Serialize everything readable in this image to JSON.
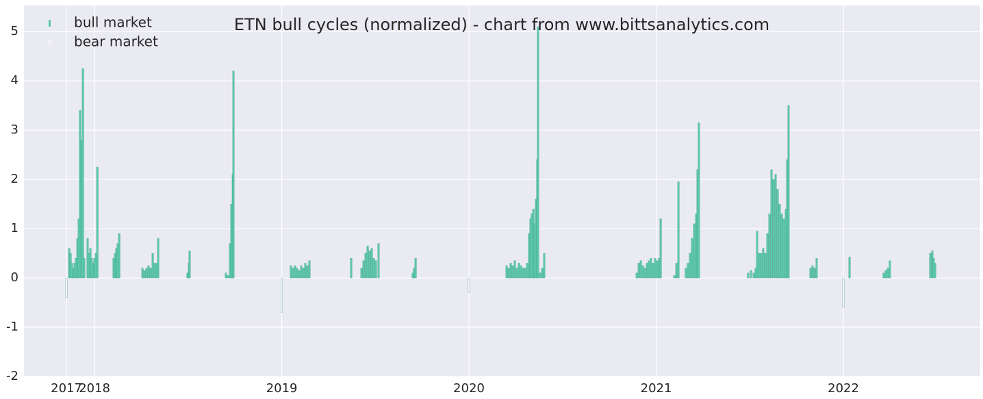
{
  "chart_data": {
    "type": "bar",
    "title": "ETN bull cycles (normalized)  - chart from www.bittsanalytics.com",
    "xlim": [
      2017.623,
      2022.731
    ],
    "ylim": [
      -2,
      5.53
    ],
    "xticks": [
      {
        "value": 2017.85,
        "label": "2017"
      },
      2018,
      2019,
      2020,
      2021,
      2022
    ],
    "yticks": [
      -2,
      -1,
      0,
      1,
      2,
      3,
      4,
      5
    ],
    "grid": true,
    "legend": "upper left",
    "series": [
      {
        "name": "bull market",
        "color": "#5cc7aa",
        "x": [
          2017.865,
          2017.872,
          2017.879,
          2017.887,
          2017.894,
          2017.901,
          2017.909,
          2017.916,
          2017.923,
          2017.931,
          2017.938,
          2017.945,
          2017.963,
          2017.971,
          2017.978,
          2017.985,
          2017.993,
          2018.0,
          2018.007,
          2018.015,
          2018.102,
          2018.11,
          2018.117,
          2018.124,
          2018.132,
          2018.256,
          2018.267,
          2018.278,
          2018.289,
          2018.3,
          2018.311,
          2018.322,
          2018.333,
          2018.34,
          2018.497,
          2018.505,
          2018.508,
          2018.702,
          2018.713,
          2018.724,
          2018.731,
          2018.739,
          2018.742,
          2019.049,
          2019.06,
          2019.071,
          2019.082,
          2019.093,
          2019.104,
          2019.115,
          2019.126,
          2019.137,
          2019.148,
          2019.371,
          2019.426,
          2019.437,
          2019.448,
          2019.459,
          2019.47,
          2019.481,
          2019.492,
          2019.503,
          2019.517,
          2019.7,
          2019.707,
          2019.715,
          2020.201,
          2020.212,
          2020.223,
          2020.234,
          2020.245,
          2020.256,
          2020.267,
          2020.278,
          2020.289,
          2020.3,
          2020.311,
          2020.322,
          2020.329,
          2020.336,
          2020.344,
          2020.351,
          2020.358,
          2020.365,
          2020.369,
          2020.38,
          2020.391,
          2020.402,
          2020.896,
          2020.907,
          2020.918,
          2020.929,
          2020.94,
          2020.951,
          2020.961,
          2020.972,
          2020.983,
          2020.994,
          2021.005,
          2021.016,
          2021.024,
          2021.097,
          2021.108,
          2021.119,
          2021.159,
          2021.17,
          2021.181,
          2021.192,
          2021.203,
          2021.214,
          2021.221,
          2021.228,
          2021.491,
          2021.506,
          2021.521,
          2021.532,
          2021.539,
          2021.55,
          2021.561,
          2021.572,
          2021.583,
          2021.594,
          2021.605,
          2021.616,
          2021.627,
          2021.638,
          2021.649,
          2021.66,
          2021.671,
          2021.682,
          2021.693,
          2021.7,
          2021.707,
          2021.824,
          2021.835,
          2021.846,
          2021.857,
          2022.033,
          2022.215,
          2022.226,
          2022.237,
          2022.248,
          2022.464,
          2022.475,
          2022.482,
          2022.49
        ],
        "values": [
          0.6,
          0.5,
          0.3,
          0.2,
          0.3,
          0.4,
          0.8,
          1.2,
          3.4,
          2.8,
          4.25,
          0.4,
          0.8,
          0.5,
          0.6,
          0.4,
          0.3,
          0.4,
          0.5,
          2.25,
          0.4,
          0.5,
          0.6,
          0.7,
          0.9,
          0.2,
          0.15,
          0.2,
          0.25,
          0.2,
          0.5,
          0.3,
          0.3,
          0.8,
          0.1,
          0.3,
          0.55,
          0.1,
          0.05,
          0.7,
          1.5,
          2.1,
          4.2,
          0.25,
          0.2,
          0.25,
          0.2,
          0.15,
          0.25,
          0.2,
          0.3,
          0.25,
          0.35,
          0.4,
          0.2,
          0.35,
          0.5,
          0.65,
          0.55,
          0.6,
          0.4,
          0.35,
          0.7,
          0.1,
          0.2,
          0.4,
          0.25,
          0.2,
          0.3,
          0.25,
          0.35,
          0.2,
          0.3,
          0.25,
          0.2,
          0.2,
          0.3,
          0.9,
          1.2,
          1.3,
          1.4,
          1.1,
          1.6,
          2.4,
          5.1,
          0.1,
          0.2,
          0.5,
          0.1,
          0.3,
          0.35,
          0.25,
          0.2,
          0.3,
          0.35,
          0.4,
          0.3,
          0.4,
          0.35,
          0.4,
          1.2,
          0.05,
          0.3,
          1.95,
          0.2,
          0.3,
          0.5,
          0.8,
          1.1,
          1.3,
          2.2,
          3.15,
          0.1,
          0.15,
          0.1,
          0.2,
          0.95,
          0.5,
          0.5,
          0.6,
          0.5,
          0.9,
          1.3,
          2.2,
          2.0,
          2.1,
          1.8,
          1.5,
          1.3,
          1.2,
          1.4,
          2.4,
          3.5,
          0.2,
          0.25,
          0.2,
          0.4,
          0.42,
          0.1,
          0.15,
          0.2,
          0.35,
          0.5,
          0.55,
          0.4,
          0.3
        ]
      },
      {
        "name": "bear market",
        "color": "#f2f2f7",
        "x": [
          2017.85,
          2019.0,
          2020.0,
          2022.0
        ],
        "values": [
          -0.4,
          -0.7,
          -0.3,
          -0.6
        ]
      }
    ]
  }
}
